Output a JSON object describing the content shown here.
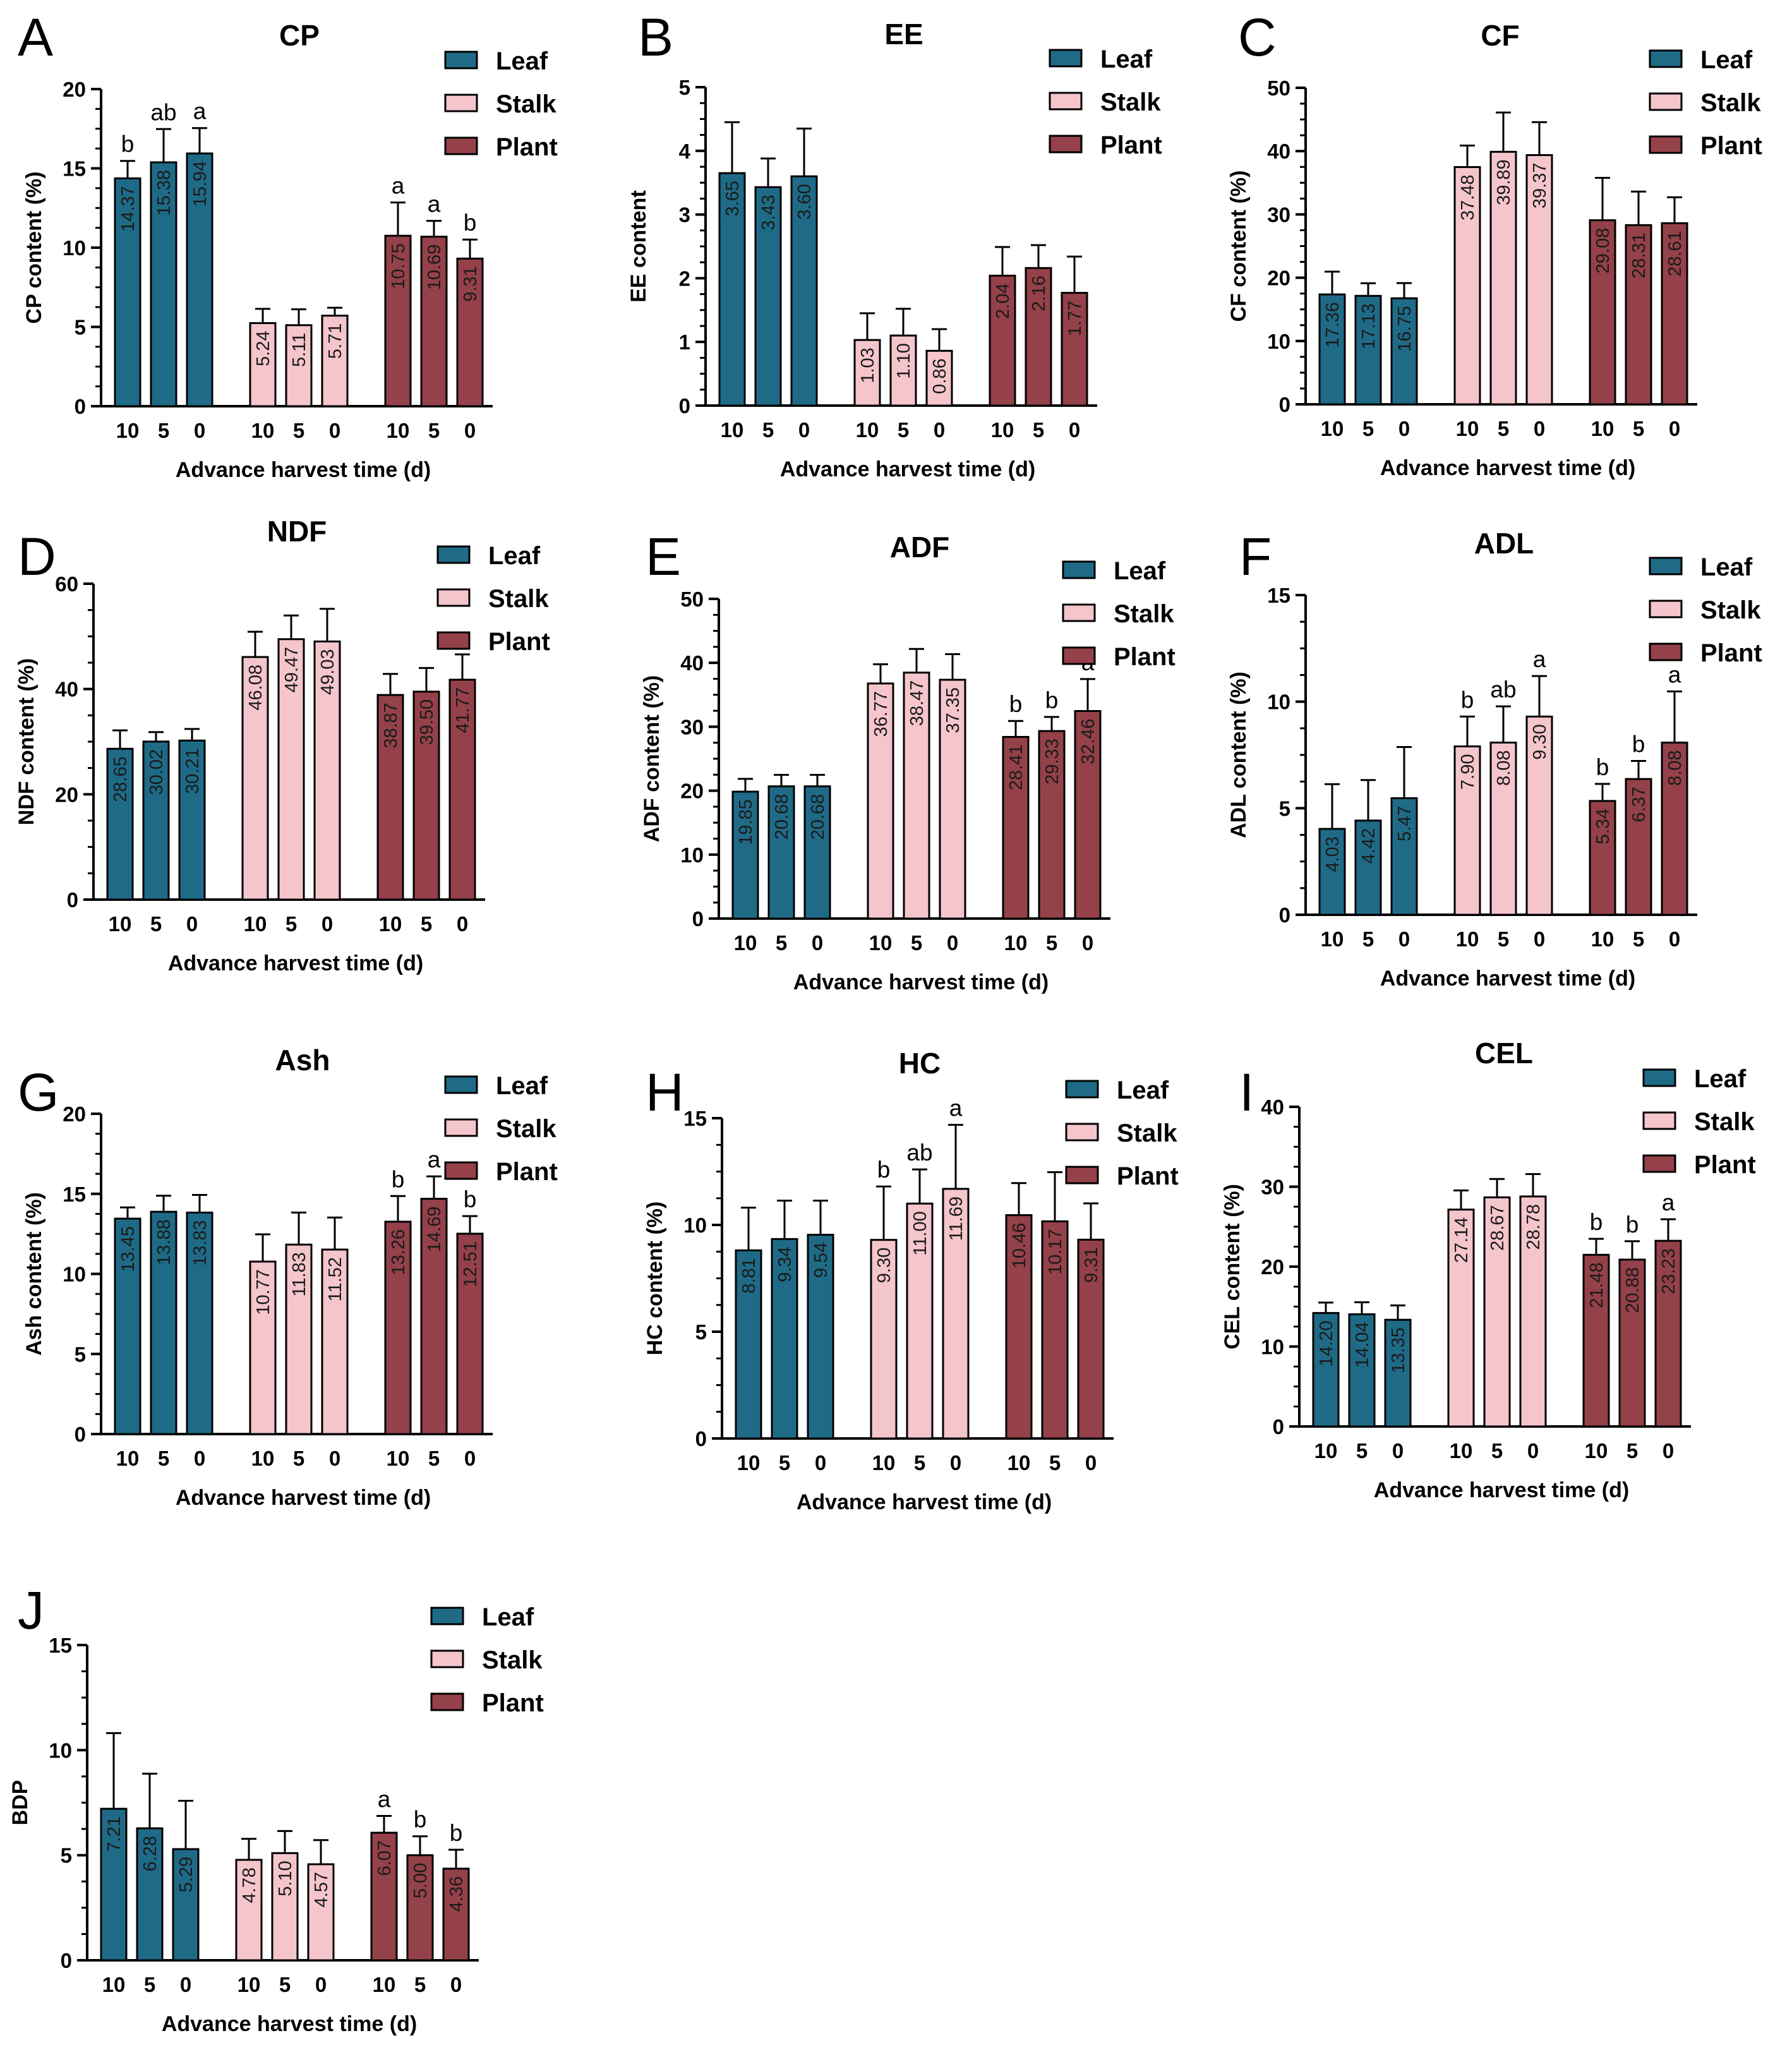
{
  "figure": {
    "x_categories": [
      "10",
      "5",
      "0"
    ],
    "colors": {
      "Leaf": "#1f6b87",
      "Stalk": "#f5c5cc",
      "Plant": "#94414a",
      "outline": "#000000"
    }
  },
  "chart_data": [
    {
      "type": "bar",
      "panel": "A",
      "title": "CP",
      "xlabel": "Advance harvest time (d)",
      "ylabel": "CP content (%)",
      "ylim": [
        0,
        20
      ],
      "yticks": [
        "0",
        "5",
        "10",
        "15",
        "20"
      ],
      "legend": [
        "Leaf",
        "Stalk",
        "Plant"
      ],
      "legend_position": "top-right",
      "categories": [
        "10",
        "5",
        "0"
      ],
      "series": [
        {
          "name": "Leaf",
          "values": [
            14.37,
            15.38,
            15.94
          ],
          "labels": [
            "14.37",
            "15.38",
            "15.94"
          ],
          "errors": [
            1.1,
            2.1,
            1.6
          ],
          "sig": [
            "b",
            "ab",
            "a"
          ]
        },
        {
          "name": "Stalk",
          "values": [
            5.24,
            5.11,
            5.71
          ],
          "labels": [
            "5.24",
            "5.11",
            "5.71"
          ],
          "errors": [
            0.9,
            1.0,
            0.5
          ],
          "sig": [
            "",
            "",
            ""
          ]
        },
        {
          "name": "Plant",
          "values": [
            10.75,
            10.69,
            9.31
          ],
          "labels": [
            "10.75",
            "10.69",
            "9.31"
          ],
          "errors": [
            2.1,
            1.0,
            1.2
          ],
          "sig": [
            "a",
            "a",
            "b"
          ]
        }
      ]
    },
    {
      "type": "bar",
      "panel": "B",
      "title": "EE",
      "xlabel": "Advance harvest time (d)",
      "ylabel": "EE content",
      "ylim": [
        0,
        5
      ],
      "yticks": [
        "0",
        "1",
        "2",
        "3",
        "4",
        "5"
      ],
      "legend": [
        "Leaf",
        "Stalk",
        "Plant"
      ],
      "legend_position": "top-right",
      "categories": [
        "10",
        "5",
        "0"
      ],
      "series": [
        {
          "name": "Leaf",
          "values": [
            3.65,
            3.43,
            3.6
          ],
          "labels": [
            "3.65",
            "3.43",
            "3.60"
          ],
          "errors": [
            0.8,
            0.45,
            0.75
          ],
          "sig": [
            "",
            "",
            ""
          ]
        },
        {
          "name": "Stalk",
          "values": [
            1.03,
            1.1,
            0.86
          ],
          "labels": [
            "1.03",
            "1.10",
            "0.86"
          ],
          "errors": [
            0.42,
            0.42,
            0.34
          ],
          "sig": [
            "",
            "",
            ""
          ]
        },
        {
          "name": "Plant",
          "values": [
            2.04,
            2.16,
            1.77
          ],
          "labels": [
            "2.04",
            "2.16",
            "1.77"
          ],
          "errors": [
            0.45,
            0.36,
            0.57
          ],
          "sig": [
            "",
            "",
            ""
          ]
        }
      ]
    },
    {
      "type": "bar",
      "panel": "C",
      "title": "CF",
      "xlabel": "Advance harvest time (d)",
      "ylabel": "CF content (%)",
      "ylim": [
        0,
        50
      ],
      "yticks": [
        "0",
        "10",
        "20",
        "30",
        "40",
        "50"
      ],
      "legend": [
        "Leaf",
        "Stalk",
        "Plant"
      ],
      "legend_position": "top-right",
      "categories": [
        "10",
        "5",
        "0"
      ],
      "series": [
        {
          "name": "Leaf",
          "values": [
            17.36,
            17.13,
            16.75
          ],
          "labels": [
            "17.36",
            "17.13",
            "16.75"
          ],
          "errors": [
            3.6,
            2.0,
            2.4
          ],
          "sig": [
            "",
            "",
            ""
          ]
        },
        {
          "name": "Stalk",
          "values": [
            37.48,
            39.89,
            39.37
          ],
          "labels": [
            "37.48",
            "39.89",
            "39.37"
          ],
          "errors": [
            3.4,
            6.2,
            5.2
          ],
          "sig": [
            "",
            "",
            ""
          ]
        },
        {
          "name": "Plant",
          "values": [
            29.08,
            28.31,
            28.61
          ],
          "labels": [
            "29.08",
            "28.31",
            "28.61"
          ],
          "errors": [
            6.7,
            5.3,
            4.1
          ],
          "sig": [
            "",
            "",
            ""
          ]
        }
      ]
    },
    {
      "type": "bar",
      "panel": "D",
      "title": "NDF",
      "xlabel": "Advance harvest time (d)",
      "ylabel": "NDF content (%)",
      "ylim": [
        0,
        60
      ],
      "yticks": [
        "0",
        "20",
        "40",
        "60"
      ],
      "legend": [
        "Leaf",
        "Stalk",
        "Plant"
      ],
      "legend_position": "top-right",
      "categories": [
        "10",
        "5",
        "0"
      ],
      "series": [
        {
          "name": "Leaf",
          "values": [
            28.65,
            30.02,
            30.21
          ],
          "labels": [
            "28.65",
            "30.02",
            "30.21"
          ],
          "errors": [
            3.5,
            1.8,
            2.2
          ],
          "sig": [
            "",
            "",
            ""
          ]
        },
        {
          "name": "Stalk",
          "values": [
            46.08,
            49.47,
            49.03
          ],
          "labels": [
            "46.08",
            "49.47",
            "49.03"
          ],
          "errors": [
            4.8,
            4.5,
            6.2
          ],
          "sig": [
            "",
            "",
            ""
          ]
        },
        {
          "name": "Plant",
          "values": [
            38.87,
            39.5,
            41.77
          ],
          "labels": [
            "38.87",
            "39.50",
            "41.77"
          ],
          "errors": [
            4.0,
            4.5,
            4.8
          ],
          "sig": [
            "",
            "",
            ""
          ]
        }
      ]
    },
    {
      "type": "bar",
      "panel": "E",
      "title": "ADF",
      "xlabel": "Advance harvest time (d)",
      "ylabel": "ADF content (%)",
      "ylim": [
        0,
        50
      ],
      "yticks": [
        "0",
        "10",
        "20",
        "30",
        "40",
        "50"
      ],
      "legend": [
        "Leaf",
        "Stalk",
        "Plant"
      ],
      "legend_position": "top-right",
      "categories": [
        "10",
        "5",
        "0"
      ],
      "series": [
        {
          "name": "Leaf",
          "values": [
            19.85,
            20.68,
            20.68
          ],
          "labels": [
            "19.85",
            "20.68",
            "20.68"
          ],
          "errors": [
            2.0,
            1.8,
            1.8
          ],
          "sig": [
            "",
            "",
            ""
          ]
        },
        {
          "name": "Stalk",
          "values": [
            36.77,
            38.47,
            37.35
          ],
          "labels": [
            "36.77",
            "38.47",
            "37.35"
          ],
          "errors": [
            3.0,
            3.7,
            4.0
          ],
          "sig": [
            "",
            "",
            ""
          ]
        },
        {
          "name": "Plant",
          "values": [
            28.41,
            29.33,
            32.46
          ],
          "labels": [
            "28.41",
            "29.33",
            "32.46"
          ],
          "errors": [
            2.5,
            2.2,
            5.0
          ],
          "sig": [
            "b",
            "b",
            "a"
          ]
        }
      ]
    },
    {
      "type": "bar",
      "panel": "F",
      "title": "ADL",
      "xlabel": "Advance harvest time (d)",
      "ylabel": "ADL content (%)",
      "ylim": [
        0,
        15
      ],
      "yticks": [
        "0",
        "5",
        "10",
        "15"
      ],
      "legend": [
        "Leaf",
        "Stalk",
        "Plant"
      ],
      "legend_position": "top-right",
      "categories": [
        "10",
        "5",
        "0"
      ],
      "series": [
        {
          "name": "Leaf",
          "values": [
            4.03,
            4.42,
            5.47
          ],
          "labels": [
            "4.03",
            "4.42",
            "5.47"
          ],
          "errors": [
            2.1,
            1.9,
            2.4
          ],
          "sig": [
            "",
            "",
            ""
          ]
        },
        {
          "name": "Stalk",
          "values": [
            7.9,
            8.08,
            9.3
          ],
          "labels": [
            "7.90",
            "8.08",
            "9.30"
          ],
          "errors": [
            1.4,
            1.7,
            1.9
          ],
          "sig": [
            "b",
            "ab",
            "a"
          ]
        },
        {
          "name": "Plant",
          "values": [
            5.34,
            6.37,
            8.08
          ],
          "labels": [
            "5.34",
            "6.37",
            "8.08"
          ],
          "errors": [
            0.8,
            0.85,
            2.4
          ],
          "sig": [
            "b",
            "b",
            "a"
          ]
        }
      ]
    },
    {
      "type": "bar",
      "panel": "G",
      "title": "Ash",
      "xlabel": "Advance harvest time (d)",
      "ylabel": "Ash content (%)",
      "ylim": [
        0,
        20
      ],
      "yticks": [
        "0",
        "5",
        "10",
        "15",
        "20"
      ],
      "legend": [
        "Leaf",
        "Stalk",
        "Plant"
      ],
      "legend_position": "top-right",
      "categories": [
        "10",
        "5",
        "0"
      ],
      "series": [
        {
          "name": "Leaf",
          "values": [
            13.45,
            13.88,
            13.83
          ],
          "labels": [
            "13.45",
            "13.88",
            "13.83"
          ],
          "errors": [
            0.7,
            1.0,
            1.1
          ],
          "sig": [
            "",
            "",
            ""
          ]
        },
        {
          "name": "Stalk",
          "values": [
            10.77,
            11.83,
            11.52
          ],
          "labels": [
            "10.77",
            "11.83",
            "11.52"
          ],
          "errors": [
            1.7,
            2.0,
            2.0
          ],
          "sig": [
            "",
            "",
            ""
          ]
        },
        {
          "name": "Plant",
          "values": [
            13.26,
            14.69,
            12.51
          ],
          "labels": [
            "13.26",
            "14.69",
            "12.51"
          ],
          "errors": [
            1.6,
            1.4,
            1.1
          ],
          "sig": [
            "b",
            "a",
            "b"
          ]
        }
      ]
    },
    {
      "type": "bar",
      "panel": "H",
      "title": "HC",
      "xlabel": "Advance harvest time (d)",
      "ylabel": "HC content (%)",
      "ylim": [
        0,
        15
      ],
      "yticks": [
        "0",
        "5",
        "10",
        "15"
      ],
      "legend": [
        "Leaf",
        "Stalk",
        "Plant"
      ],
      "legend_position": "top-right",
      "categories": [
        "10",
        "5",
        "0"
      ],
      "series": [
        {
          "name": "Leaf",
          "values": [
            8.81,
            9.34,
            9.54
          ],
          "labels": [
            "8.81",
            "9.34",
            "9.54"
          ],
          "errors": [
            2.0,
            1.8,
            1.6
          ],
          "sig": [
            "",
            "",
            ""
          ]
        },
        {
          "name": "Stalk",
          "values": [
            9.3,
            11.0,
            11.69
          ],
          "labels": [
            "9.30",
            "11.00",
            "11.69"
          ],
          "errors": [
            2.5,
            1.6,
            3.0
          ],
          "sig": [
            "b",
            "ab",
            "a"
          ]
        },
        {
          "name": "Plant",
          "values": [
            10.46,
            10.17,
            9.31
          ],
          "labels": [
            "10.46",
            "10.17",
            "9.31"
          ],
          "errors": [
            1.5,
            2.3,
            1.7
          ],
          "sig": [
            "",
            "",
            ""
          ]
        }
      ]
    },
    {
      "type": "bar",
      "panel": "I",
      "title": "CEL",
      "xlabel": "Advance harvest time (d)",
      "ylabel": "CEL content (%)",
      "ylim": [
        0,
        40
      ],
      "yticks": [
        "0",
        "10",
        "20",
        "30",
        "40"
      ],
      "legend": [
        "Leaf",
        "Stalk",
        "Plant"
      ],
      "legend_position": "top-right",
      "categories": [
        "10",
        "5",
        "0"
      ],
      "series": [
        {
          "name": "Leaf",
          "values": [
            14.2,
            14.04,
            13.35
          ],
          "labels": [
            "14.20",
            "14.04",
            "13.35"
          ],
          "errors": [
            1.3,
            1.5,
            1.8
          ],
          "sig": [
            "",
            "",
            ""
          ]
        },
        {
          "name": "Stalk",
          "values": [
            27.14,
            28.67,
            28.78
          ],
          "labels": [
            "27.14",
            "28.67",
            "28.78"
          ],
          "errors": [
            2.4,
            2.3,
            2.8
          ],
          "sig": [
            "",
            "",
            ""
          ]
        },
        {
          "name": "Plant",
          "values": [
            21.48,
            20.88,
            23.23
          ],
          "labels": [
            "21.48",
            "20.88",
            "23.23"
          ],
          "errors": [
            2.0,
            2.3,
            2.7
          ],
          "sig": [
            "b",
            "b",
            "a"
          ]
        }
      ]
    },
    {
      "type": "bar",
      "panel": "J",
      "title": "",
      "xlabel": "Advance harvest time (d)",
      "ylabel": "BDP",
      "ylim": [
        0,
        15
      ],
      "yticks": [
        "0",
        "5",
        "10",
        "15"
      ],
      "legend": [
        "Leaf",
        "Stalk",
        "Plant"
      ],
      "legend_position": "top-right",
      "categories": [
        "10",
        "5",
        "0"
      ],
      "series": [
        {
          "name": "Leaf",
          "values": [
            7.21,
            6.28,
            5.29
          ],
          "labels": [
            "7.21",
            "6.28",
            "5.29"
          ],
          "errors": [
            3.6,
            2.6,
            2.3
          ],
          "sig": [
            "",
            "",
            ""
          ]
        },
        {
          "name": "Stalk",
          "values": [
            4.78,
            5.1,
            4.57
          ],
          "labels": [
            "4.78",
            "5.10",
            "4.57"
          ],
          "errors": [
            1.0,
            1.05,
            1.15
          ],
          "sig": [
            "",
            "",
            ""
          ]
        },
        {
          "name": "Plant",
          "values": [
            6.07,
            5.0,
            4.36
          ],
          "labels": [
            "6.07",
            "5.00",
            "4.36"
          ],
          "errors": [
            0.8,
            0.9,
            0.9
          ],
          "sig": [
            "a",
            "b",
            "b"
          ]
        }
      ]
    }
  ]
}
